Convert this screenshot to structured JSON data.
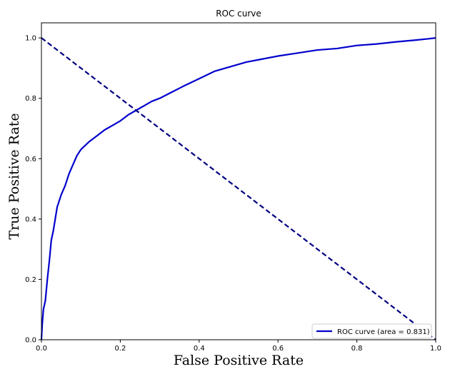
{
  "chart_data": {
    "type": "line",
    "title": "ROC curve",
    "xlabel": "False Positive Rate",
    "ylabel": "True Positive Rate",
    "xlim": [
      0.0,
      1.0
    ],
    "ylim": [
      0.0,
      1.05
    ],
    "xticks": [
      0.0,
      0.2,
      0.4,
      0.6,
      0.8,
      1.0
    ],
    "yticks": [
      0.0,
      0.2,
      0.4,
      0.6,
      0.8,
      1.0
    ],
    "xtick_labels": [
      "0.0",
      "0.2",
      "0.4",
      "0.6",
      "0.8",
      "1.0"
    ],
    "ytick_labels": [
      "0.0",
      "0.2",
      "0.4",
      "0.6",
      "0.8",
      "1.0"
    ],
    "grid": false,
    "legend_position": "lower right",
    "series": [
      {
        "name": "ROC curve (area = 0.831)",
        "color": "#0000cd",
        "style": "solid",
        "x": [
          0.0,
          0.002,
          0.005,
          0.01,
          0.015,
          0.02,
          0.025,
          0.03,
          0.035,
          0.04,
          0.05,
          0.06,
          0.07,
          0.08,
          0.09,
          0.1,
          0.12,
          0.14,
          0.16,
          0.18,
          0.2,
          0.22,
          0.24,
          0.26,
          0.28,
          0.3,
          0.33,
          0.36,
          0.4,
          0.44,
          0.48,
          0.52,
          0.56,
          0.6,
          0.65,
          0.7,
          0.75,
          0.8,
          0.85,
          0.9,
          0.95,
          0.98,
          1.0
        ],
        "y": [
          0.0,
          0.05,
          0.1,
          0.13,
          0.2,
          0.26,
          0.33,
          0.36,
          0.4,
          0.44,
          0.48,
          0.51,
          0.55,
          0.58,
          0.61,
          0.63,
          0.655,
          0.675,
          0.695,
          0.71,
          0.725,
          0.745,
          0.76,
          0.775,
          0.79,
          0.8,
          0.82,
          0.84,
          0.865,
          0.89,
          0.905,
          0.92,
          0.93,
          0.94,
          0.95,
          0.96,
          0.965,
          0.975,
          0.98,
          0.987,
          0.993,
          0.997,
          1.0
        ]
      },
      {
        "color": "#000080",
        "style": "dashed",
        "x": [
          0.0,
          1.0
        ],
        "y": [
          1.0,
          0.0
        ]
      }
    ]
  }
}
